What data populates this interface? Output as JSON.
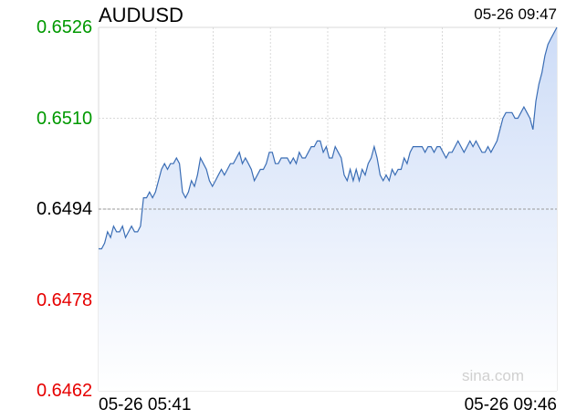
{
  "header": {
    "symbol": "AUDUSD",
    "timestamp": "05-26 09:47"
  },
  "watermark": "sina.com",
  "colors": {
    "up": "#009900",
    "down": "#e60000",
    "neutral": "#000000",
    "line": "#3a6db5",
    "fill_top": "#cddcf7",
    "fill_bottom": "#ffffff",
    "grid": "#d9d9d9",
    "prevclose": "#999999"
  },
  "chart_data": {
    "type": "area",
    "title": "AUDUSD",
    "xlabel": "",
    "ylabel": "",
    "x_range": [
      "05-26 05:41",
      "05-26 09:46"
    ],
    "x_tick_labels": [
      "05-26 05:41",
      "05-26 09:46"
    ],
    "ylim": [
      0.6462,
      0.6526
    ],
    "y_ticks": [
      "0.6526",
      "0.6510",
      "0.6494",
      "0.6478",
      "0.6462"
    ],
    "y_tick_colors": [
      "up",
      "up",
      "neutral",
      "down",
      "down"
    ],
    "previous_close": 0.6494,
    "grid": true,
    "series": [
      {
        "values": [
          0.6487,
          0.6487,
          0.6488,
          0.649,
          0.6489,
          0.6491,
          0.649,
          0.649,
          0.6491,
          0.6489,
          0.649,
          0.6491,
          0.649,
          0.649,
          0.6491,
          0.6496,
          0.6496,
          0.6497,
          0.6496,
          0.6497,
          0.6499,
          0.6501,
          0.6502,
          0.6501,
          0.6502,
          0.6502,
          0.6503,
          0.6502,
          0.6497,
          0.6496,
          0.6497,
          0.6499,
          0.6498,
          0.65,
          0.6503,
          0.6502,
          0.6501,
          0.6499,
          0.6498,
          0.6499,
          0.65,
          0.6501,
          0.65,
          0.6501,
          0.6502,
          0.6502,
          0.6503,
          0.6504,
          0.6502,
          0.6503,
          0.6502,
          0.6501,
          0.6499,
          0.65,
          0.6501,
          0.6501,
          0.6502,
          0.6504,
          0.6504,
          0.6502,
          0.6502,
          0.6503,
          0.6503,
          0.6503,
          0.6502,
          0.6503,
          0.6502,
          0.6504,
          0.6503,
          0.6503,
          0.6504,
          0.6505,
          0.6505,
          0.6506,
          0.6506,
          0.6504,
          0.6505,
          0.6503,
          0.6503,
          0.6505,
          0.6504,
          0.6503,
          0.65,
          0.6499,
          0.6501,
          0.6499,
          0.6501,
          0.6499,
          0.6501,
          0.65,
          0.6502,
          0.6503,
          0.6505,
          0.6503,
          0.65,
          0.6499,
          0.65,
          0.6499,
          0.6501,
          0.65,
          0.6501,
          0.6501,
          0.6503,
          0.6502,
          0.6504,
          0.6505,
          0.6505,
          0.6505,
          0.6505,
          0.6504,
          0.6505,
          0.6505,
          0.6504,
          0.6505,
          0.6505,
          0.6504,
          0.6503,
          0.6504,
          0.6504,
          0.6505,
          0.6506,
          0.6505,
          0.6504,
          0.6505,
          0.6506,
          0.6505,
          0.6506,
          0.6505,
          0.6504,
          0.6504,
          0.6505,
          0.6504,
          0.6505,
          0.6506,
          0.6508,
          0.651,
          0.6511,
          0.6511,
          0.6511,
          0.651,
          0.651,
          0.6511,
          0.6512,
          0.6511,
          0.651,
          0.6508,
          0.6513,
          0.6516,
          0.6518,
          0.6521,
          0.6523,
          0.6524,
          0.6525,
          0.6526
        ]
      }
    ]
  }
}
